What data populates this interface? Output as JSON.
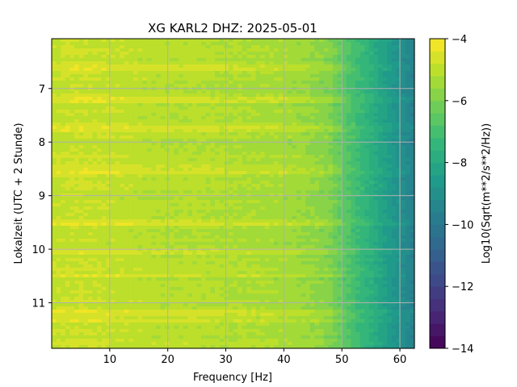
{
  "chart_data": {
    "type": "heatmap",
    "title": "XG KARL2  DHZ: 2025-05-01",
    "xlabel": "Frequency [Hz]",
    "ylabel": "Lokalzeit (UTC + 2 Stunde)",
    "xlim": [
      0,
      62.5
    ],
    "ylim": [
      6.07,
      11.85
    ],
    "y_inverted": true,
    "x_ticks": [
      10,
      20,
      30,
      40,
      50,
      60
    ],
    "y_ticks": [
      7,
      8,
      9,
      10,
      11
    ],
    "grid": true,
    "colormap": "viridis",
    "colorbar": {
      "label": "Log10(Sqrt(m**2/s**2/Hz))",
      "range": [
        -14,
        -4
      ],
      "ticks": [
        -4,
        -6,
        -8,
        -10,
        -12,
        -14
      ],
      "levels": 25
    },
    "spectrum_profile": {
      "frequency_hz": [
        0,
        5,
        10,
        15,
        20,
        25,
        30,
        35,
        40,
        45,
        48,
        50,
        52,
        55,
        58,
        60,
        62.5
      ],
      "level": [
        -4.9,
        -4.8,
        -4.9,
        -5.0,
        -5.1,
        -5.1,
        -5.2,
        -5.25,
        -5.35,
        -5.6,
        -5.9,
        -6.5,
        -7.0,
        -7.7,
        -8.5,
        -9.0,
        -9.6
      ]
    },
    "bright_bands_local_time": [
      6.6,
      7.2,
      7.75,
      8.45,
      8.55,
      9.5,
      10.05,
      10.5,
      11.2,
      11.3
    ]
  }
}
